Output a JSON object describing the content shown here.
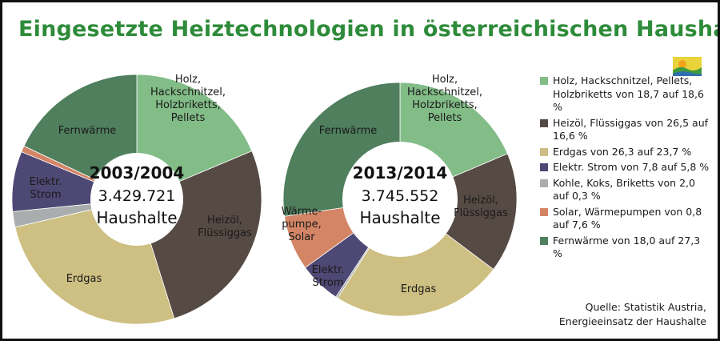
{
  "title": "Eingesetzte Heiztechnologien in österreichischen Haushalten",
  "chart_data": [
    {
      "type": "pie",
      "center": [
        "2003/2004",
        "3.429.721",
        "Haushalte"
      ],
      "slices": [
        {
          "key": "holz",
          "value": 18.7,
          "label": [
            "Holz,",
            "Hackschnitzel,",
            "Holzbriketts,",
            "Pellets"
          ]
        },
        {
          "key": "heizoel",
          "value": 26.5,
          "label": [
            "Heizöl,",
            "Flüssiggas"
          ]
        },
        {
          "key": "erdgas",
          "value": 26.3,
          "label": [
            "Erdgas"
          ]
        },
        {
          "key": "kohle",
          "value": 2.0,
          "label": []
        },
        {
          "key": "strom",
          "value": 7.8,
          "label": [
            "Elektr.",
            "Strom"
          ]
        },
        {
          "key": "solar",
          "value": 0.8,
          "label": []
        },
        {
          "key": "fernwaerme",
          "value": 18.0,
          "label": [
            "Fernwärme"
          ]
        }
      ]
    },
    {
      "type": "pie",
      "center": [
        "2013/2014",
        "3.745.552",
        "Haushalte"
      ],
      "slices": [
        {
          "key": "holz",
          "value": 18.6,
          "label": [
            "Holz,",
            "Hackschnitzel,",
            "Holzbriketts,",
            "Pellets"
          ]
        },
        {
          "key": "heizoel",
          "value": 16.6,
          "label": [
            "Heizöl,",
            "Flüssiggas"
          ]
        },
        {
          "key": "erdgas",
          "value": 23.7,
          "label": [
            "Erdgas"
          ]
        },
        {
          "key": "kohle",
          "value": 0.3,
          "label": []
        },
        {
          "key": "strom",
          "value": 5.8,
          "label": [
            "Elektr.",
            "Strom"
          ]
        },
        {
          "key": "solar",
          "value": 7.6,
          "label": [
            "Wärme-",
            "pumpe,",
            "Solar"
          ]
        },
        {
          "key": "fernwaerme",
          "value": 27.3,
          "label": [
            "Fernwärme"
          ]
        }
      ]
    }
  ],
  "colors": {
    "holz": "#82bc87",
    "heizoel": "#564a44",
    "erdgas": "#cebf82",
    "kohle": "#aaadad",
    "strom": "#4e4874",
    "solar": "#d38566",
    "fernwaerme": "#4f7f5d",
    "title": "#2e8b3a"
  },
  "legend": [
    {
      "key": "holz",
      "text": "Holz, Hackschnitzel, Pellets, Holzbriketts von 18,7 auf 18,6 %"
    },
    {
      "key": "heizoel",
      "text": "Heizöl, Flüssiggas von 26,5 auf 16,6 %"
    },
    {
      "key": "erdgas",
      "text": "Erdgas von 26,3 auf 23,7 %"
    },
    {
      "key": "strom",
      "text": "Elektr. Strom von 7,8 auf 5,8 %"
    },
    {
      "key": "kohle",
      "text": "Kohle, Koks, Briketts von 2,0 auf 0,3 %"
    },
    {
      "key": "solar",
      "text": "Solar, Wärmepumpen von 0,8 auf 7,6 %"
    },
    {
      "key": "fernwaerme",
      "text": "Fernwärme von 18,0 auf 27,3 %"
    }
  ],
  "source": [
    "Quelle: Statistik Austria,",
    "Energieeinsatz der Haushalte"
  ]
}
